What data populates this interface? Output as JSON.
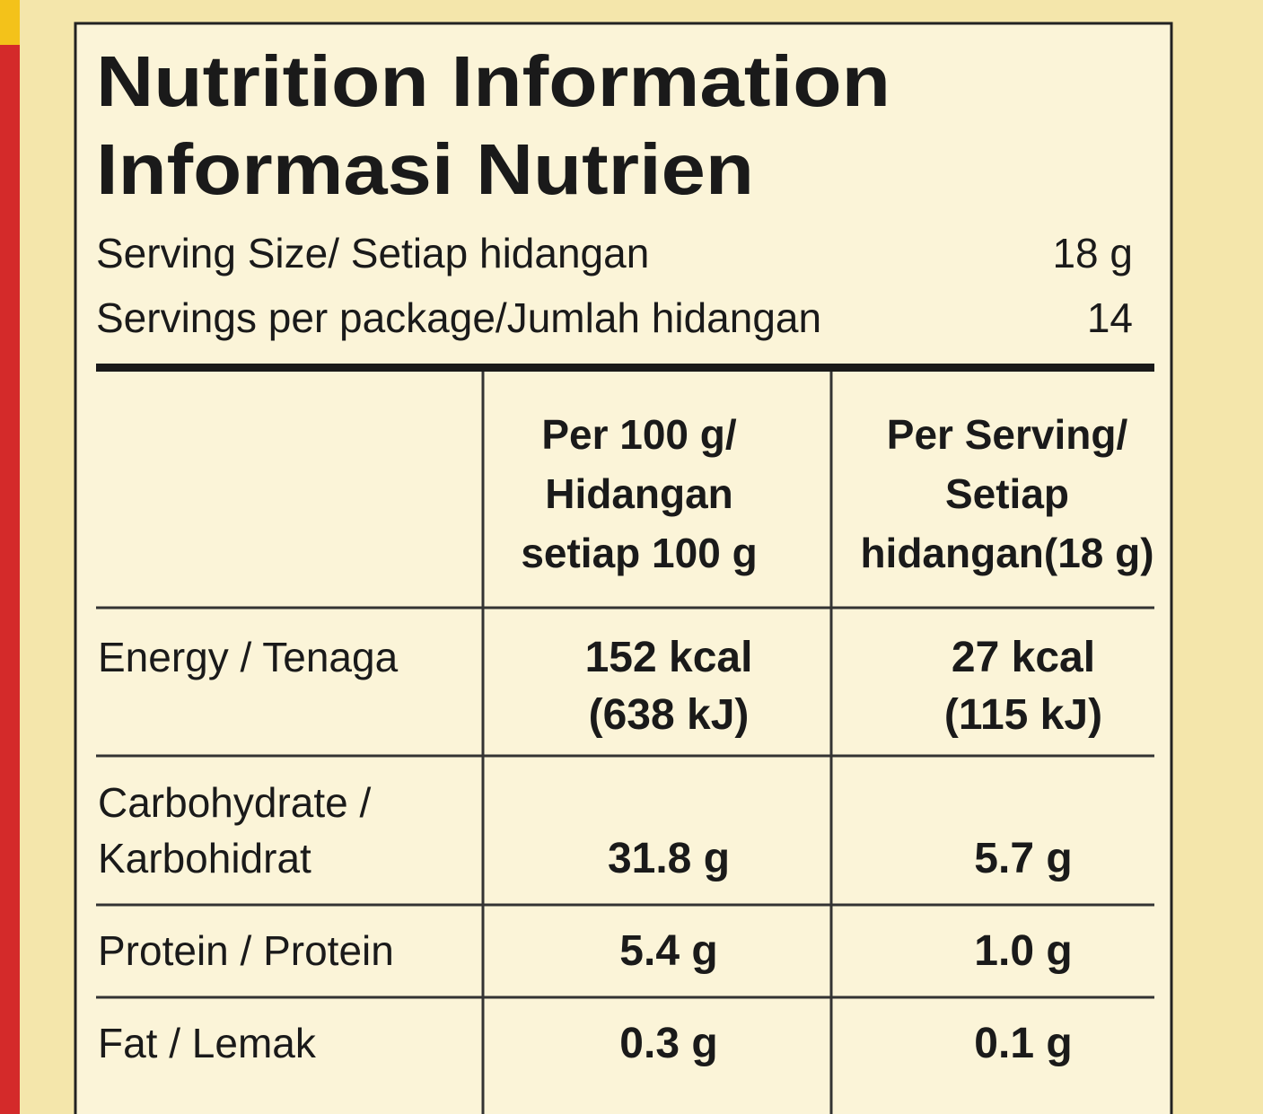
{
  "header": {
    "title": "Nutrition Information",
    "subtitle": "Informasi Nutrien"
  },
  "serving": [
    {
      "label": "Serving Size/ Setiap hidangan",
      "value": "18 g"
    },
    {
      "label": "Servings per package/Jumlah hidangan",
      "value": "14"
    }
  ],
  "table": {
    "columns": [
      [
        "Per 100 g/",
        "Hidangan",
        "setiap 100 g"
      ],
      [
        "Per Serving/",
        "Setiap",
        "hidangan(18 g)"
      ]
    ],
    "rows": [
      {
        "label": [
          "Energy / Tenaga"
        ],
        "per100": [
          "152 kcal",
          "(638 kJ)"
        ],
        "perServing": [
          "27 kcal",
          "(115 kJ)"
        ]
      },
      {
        "label": [
          "Carbohydrate /",
          "Karbohidrat"
        ],
        "per100": [
          "31.8 g"
        ],
        "perServing": [
          "5.7 g"
        ]
      },
      {
        "label": [
          "Protein / Protein"
        ],
        "per100": [
          "5.4 g"
        ],
        "perServing": [
          "1.0 g"
        ]
      },
      {
        "label": [
          "Fat / Lemak"
        ],
        "per100": [
          "0.3 g"
        ],
        "perServing": [
          "0.1 g"
        ]
      }
    ]
  }
}
